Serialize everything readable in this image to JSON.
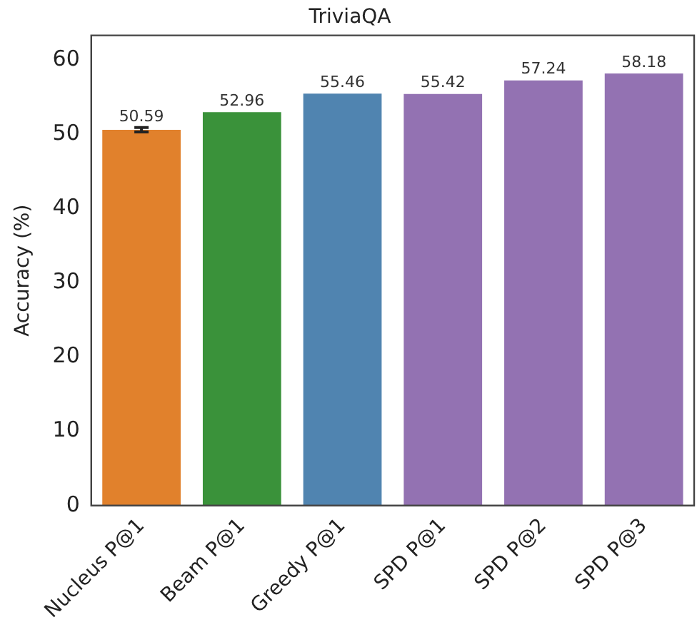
{
  "chart_data": {
    "type": "bar",
    "title": "TriviaQA",
    "ylabel": "Accuracy (%)",
    "categories": [
      "Nucleus P@1",
      "Beam P@1",
      "Greedy P@1",
      "SPD P@1",
      "SPD P@2",
      "SPD P@3"
    ],
    "values": [
      50.59,
      52.96,
      55.46,
      55.42,
      57.24,
      58.18
    ],
    "colors": [
      "#e1812c",
      "#3a923a",
      "#5084b0",
      "#9372b2",
      "#9372b2",
      "#9372b2"
    ],
    "errors": [
      0.3,
      null,
      null,
      null,
      null,
      null
    ],
    "ylim": [
      0,
      63.3
    ],
    "yticks": [
      0,
      10,
      20,
      30,
      40,
      50,
      60
    ],
    "data_labels": true,
    "grid": false,
    "legend": false
  }
}
